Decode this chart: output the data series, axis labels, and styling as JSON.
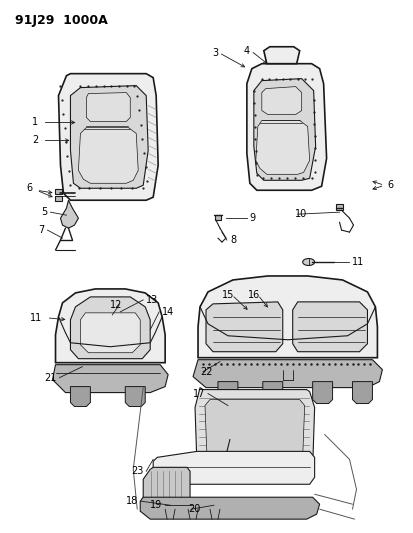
{
  "title": "91J29  1000A",
  "bg_color": "#ffffff",
  "line_color": "#1a1a1a",
  "figsize": [
    4.14,
    5.33
  ],
  "dpi": 100,
  "gray_fill": "#d8d8d8",
  "light_fill": "#eeeeee",
  "mid_fill": "#c8c8c8",
  "dark_fill": "#aaaaaa"
}
